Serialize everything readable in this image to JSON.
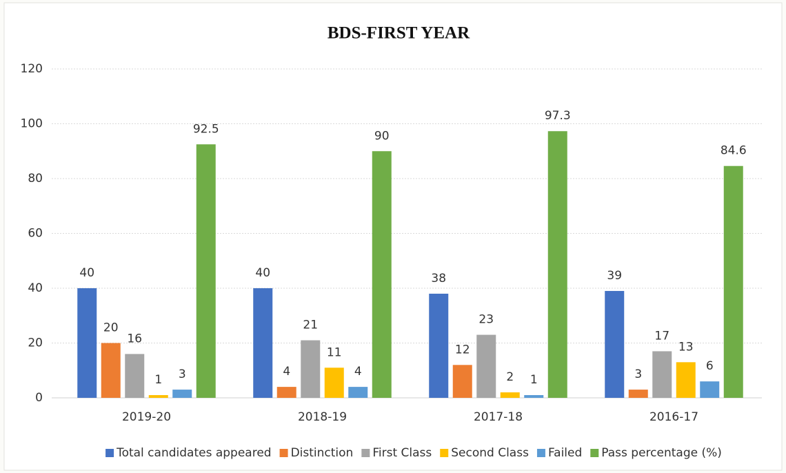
{
  "chart_data": {
    "type": "bar",
    "title": "BDS-FIRST YEAR",
    "categories": [
      "2019-20",
      "2018-19",
      "2017-18",
      "2016-17"
    ],
    "series": [
      {
        "name": "Total candidates appeared",
        "color": "#4472c4",
        "values": [
          40,
          40,
          38,
          39
        ]
      },
      {
        "name": "Distinction",
        "color": "#ed7d31",
        "values": [
          20,
          4,
          12,
          3
        ]
      },
      {
        "name": "First Class",
        "color": "#a5a5a5",
        "values": [
          16,
          21,
          23,
          17
        ]
      },
      {
        "name": "Second Class",
        "color": "#ffc000",
        "values": [
          1,
          11,
          2,
          13
        ]
      },
      {
        "name": "Failed",
        "color": "#5b9bd5",
        "values": [
          3,
          4,
          1,
          6
        ]
      },
      {
        "name": "Pass percentage (%)",
        "color": "#70ad47",
        "values": [
          92.5,
          90,
          97.3,
          84.6
        ]
      }
    ],
    "ylim": [
      0,
      120
    ],
    "yticks": [
      0,
      20,
      40,
      60,
      80,
      100,
      120
    ],
    "grid": true,
    "legend": "bottom"
  }
}
